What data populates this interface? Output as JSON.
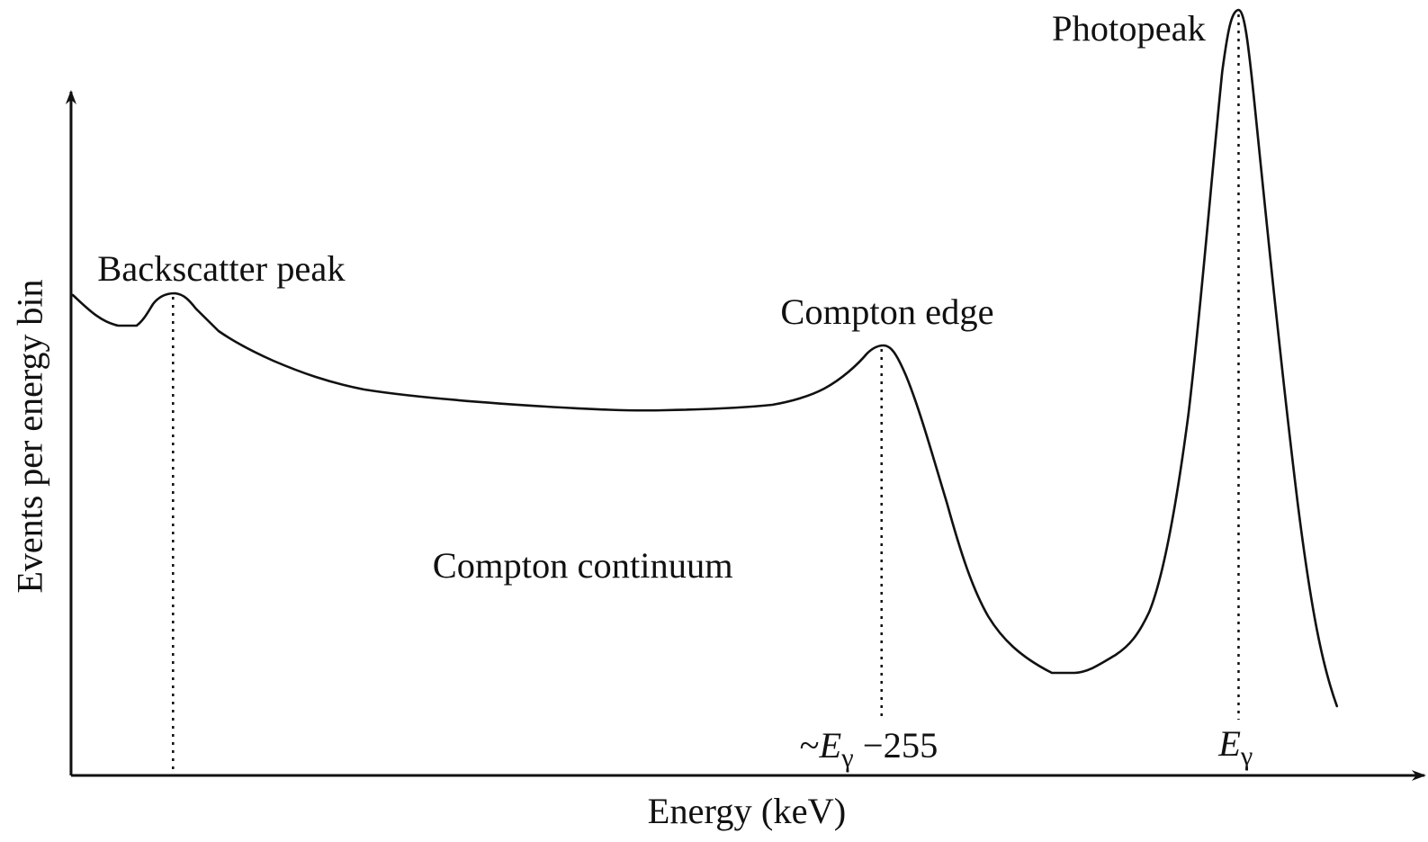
{
  "diagram": {
    "axes": {
      "x_label": "Energy (keV)",
      "y_label": "Events per energy bin"
    },
    "labels": {
      "photopeak": "Photopeak",
      "backscatter_peak": "Backscatter peak",
      "compton_edge": "Compton edge",
      "compton_continuum": "Compton continuum",
      "compton_edge_energy": {
        "prefix": "~",
        "symbol": "E",
        "subscript": "γ",
        "suffix": " −255"
      },
      "photopeak_energy": {
        "symbol": "E",
        "subscript": "γ"
      }
    }
  }
}
